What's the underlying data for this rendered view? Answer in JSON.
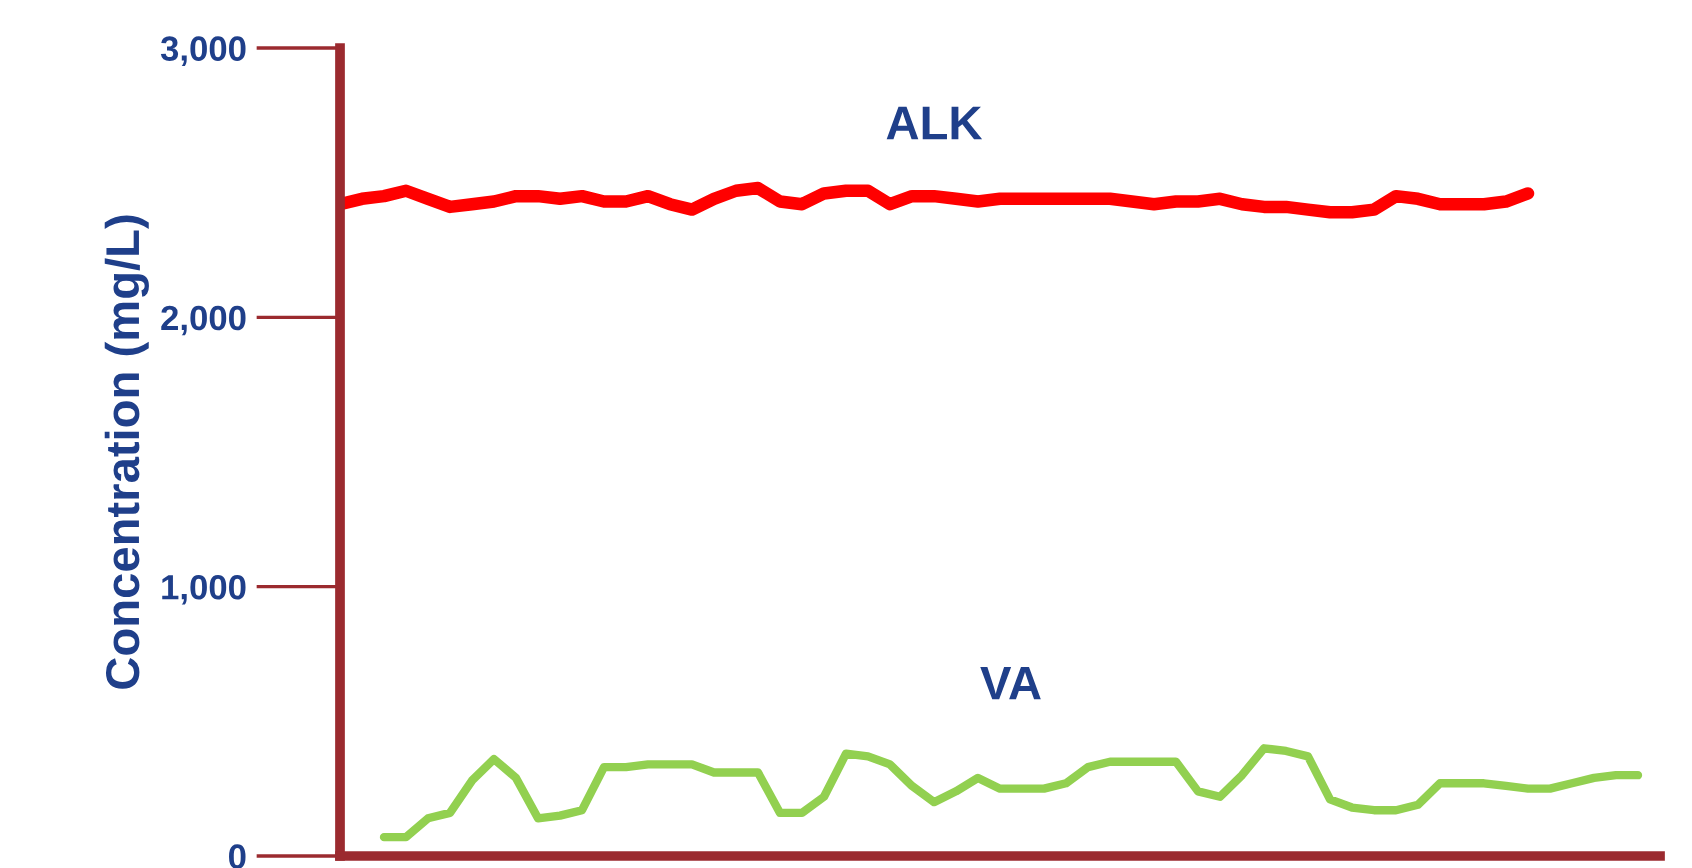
{
  "chart_data": {
    "type": "line",
    "ylabel": "Concentration (mg/L)",
    "categories": [
      null,
      null,
      null,
      null,
      null,
      null,
      null,
      null,
      null,
      null,
      null,
      null,
      null,
      null,
      null,
      null,
      null,
      null,
      null,
      null,
      null,
      null,
      null,
      null,
      null,
      null,
      null,
      null,
      null,
      null,
      null,
      null,
      null,
      null,
      null,
      null,
      null,
      null,
      null,
      null,
      null,
      null,
      null,
      null,
      null,
      null,
      null,
      null,
      null,
      null,
      null,
      null,
      null,
      null,
      null,
      null,
      null,
      null,
      null,
      null
    ],
    "series": [
      {
        "name": "ALK",
        "color": "#ff0000",
        "values": [
          2420,
          2440,
          2450,
          2470,
          2440,
          2410,
          2420,
          2430,
          2450,
          2450,
          2440,
          2450,
          2430,
          2430,
          2450,
          2420,
          2400,
          2440,
          2470,
          2480,
          2430,
          2420,
          2460,
          2470,
          2470,
          2420,
          2450,
          2450,
          2440,
          2430,
          2440,
          2440,
          2440,
          2440,
          2440,
          2440,
          2430,
          2420,
          2430,
          2430,
          2440,
          2420,
          2410,
          2410,
          2400,
          2390,
          2390,
          2400,
          2450,
          2440,
          2420,
          2420,
          2420,
          2430,
          2460,
          null,
          null,
          null,
          null,
          null
        ]
      },
      {
        "name": "VA",
        "color": "#92d050",
        "values": [
          null,
          null,
          70,
          70,
          140,
          160,
          280,
          360,
          290,
          140,
          150,
          170,
          330,
          330,
          340,
          340,
          340,
          310,
          310,
          310,
          160,
          160,
          220,
          380,
          370,
          340,
          260,
          200,
          240,
          290,
          250,
          250,
          250,
          270,
          330,
          350,
          350,
          350,
          350,
          240,
          220,
          300,
          400,
          390,
          370,
          210,
          180,
          170,
          170,
          190,
          270,
          270,
          270,
          260,
          250,
          250,
          270,
          290,
          300,
          300
        ]
      }
    ],
    "ylim": [
      0,
      3000
    ],
    "yticks": [
      {
        "value": 0,
        "label": "0"
      },
      {
        "value": 1000,
        "label": "1,000"
      },
      {
        "value": 2000,
        "label": "2,000"
      },
      {
        "value": 3000,
        "label": "3,000"
      }
    ],
    "tick_labels": "y",
    "grid": false,
    "legend": false,
    "marker": "none",
    "line_style": "solid"
  }
}
